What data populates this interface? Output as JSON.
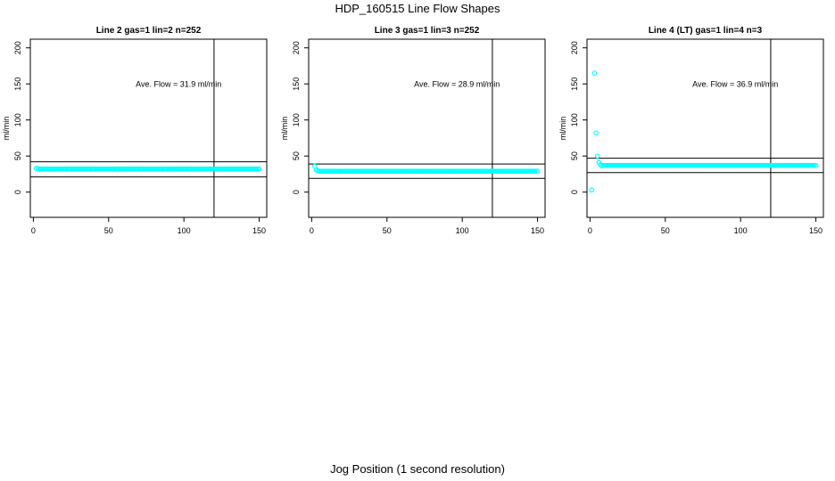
{
  "figure": {
    "title": "HDP_160515  Line Flow Shapes",
    "xlabel": "Jog Position (1 second resolution)"
  },
  "colors": {
    "points": "#00ffff",
    "axes": "#000000"
  },
  "chart_data": [
    {
      "type": "scatter",
      "title": "Line 2 gas=1 lin=2 n=252",
      "ylabel": "ml/min",
      "xlim": [
        -2,
        155
      ],
      "ylim": [
        -35,
        212
      ],
      "xticks": [
        0,
        50,
        100,
        150
      ],
      "yticks": [
        0,
        50,
        100,
        150,
        200
      ],
      "annotation": "Ave. Flow =  31.9  ml/min",
      "hlines": [
        42,
        21
      ],
      "vline": 120,
      "points": {
        "x_start": 2,
        "x_end": 150,
        "x_step": 1,
        "initial": [
          [
            2,
            33
          ],
          [
            3,
            32.5
          ],
          [
            4,
            32
          ]
        ],
        "steady": 32
      }
    },
    {
      "type": "scatter",
      "title": "Line 3 gas=1 lin=3 n=252",
      "ylabel": "ml/min",
      "xlim": [
        -2,
        155
      ],
      "ylim": [
        -35,
        212
      ],
      "xticks": [
        0,
        50,
        100,
        150
      ],
      "yticks": [
        0,
        50,
        100,
        150,
        200
      ],
      "annotation": "Ave. Flow =  28.9  ml/min",
      "hlines": [
        39,
        19
      ],
      "vline": 120,
      "points": {
        "x_start": 2,
        "x_end": 150,
        "x_step": 1,
        "initial": [
          [
            2,
            36
          ],
          [
            3,
            31
          ],
          [
            4,
            29.5
          ]
        ],
        "steady": 29
      }
    },
    {
      "type": "scatter",
      "title": "Line 4 (LT) gas=1 lin=4 n=3",
      "ylabel": "ml/min",
      "xlim": [
        -2,
        155
      ],
      "ylim": [
        -35,
        212
      ],
      "xticks": [
        0,
        50,
        100,
        150
      ],
      "yticks": [
        0,
        50,
        100,
        150,
        200
      ],
      "annotation": "Ave. Flow =  36.9  ml/min",
      "hlines": [
        47,
        27
      ],
      "vline": 120,
      "points": {
        "x_start": 1,
        "x_end": 150,
        "x_step": 1,
        "initial": [
          [
            1,
            3
          ],
          [
            3,
            165
          ],
          [
            4,
            82
          ],
          [
            5,
            50
          ],
          [
            6,
            41
          ],
          [
            7,
            38
          ],
          [
            8,
            36.5
          ]
        ],
        "steady": 37
      }
    }
  ]
}
